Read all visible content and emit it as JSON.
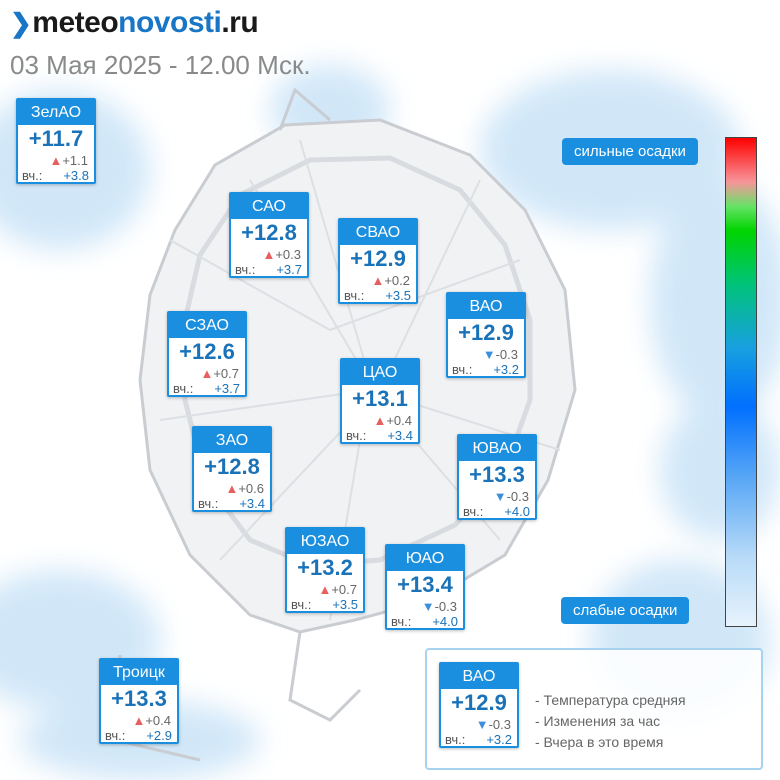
{
  "header": {
    "logo": {
      "prefix": "meteo",
      "accent": "novosti",
      "suffix": ".ru",
      "mark": "❯"
    },
    "datetime": "03 Мая 2025 - 12.00 Мск."
  },
  "districts": [
    {
      "name": "ЗелАО",
      "temp": "+11.7",
      "trend": "up",
      "change": "+1.1",
      "yesterday_label": "вч.:",
      "yesterday": "+3.8"
    },
    {
      "name": "САО",
      "temp": "+12.8",
      "trend": "up",
      "change": "+0.3",
      "yesterday_label": "вч.:",
      "yesterday": "+3.7"
    },
    {
      "name": "СВАО",
      "temp": "+12.9",
      "trend": "up",
      "change": "+0.2",
      "yesterday_label": "вч.:",
      "yesterday": "+3.5"
    },
    {
      "name": "ВАО",
      "temp": "+12.9",
      "trend": "down",
      "change": "-0.3",
      "yesterday_label": "вч.:",
      "yesterday": "+3.2"
    },
    {
      "name": "СЗАО",
      "temp": "+12.6",
      "trend": "up",
      "change": "+0.7",
      "yesterday_label": "вч.:",
      "yesterday": "+3.7"
    },
    {
      "name": "ЦАО",
      "temp": "+13.1",
      "trend": "up",
      "change": "+0.4",
      "yesterday_label": "вч.:",
      "yesterday": "+3.4"
    },
    {
      "name": "ЗАО",
      "temp": "+12.8",
      "trend": "up",
      "change": "+0.6",
      "yesterday_label": "вч.:",
      "yesterday": "+3.4"
    },
    {
      "name": "ЮВАО",
      "temp": "+13.3",
      "trend": "down",
      "change": "-0.3",
      "yesterday_label": "вч.:",
      "yesterday": "+4.0"
    },
    {
      "name": "ЮЗАО",
      "temp": "+13.2",
      "trend": "up",
      "change": "+0.7",
      "yesterday_label": "вч.:",
      "yesterday": "+3.5"
    },
    {
      "name": "ЮАО",
      "temp": "+13.4",
      "trend": "down",
      "change": "-0.3",
      "yesterday_label": "вч.:",
      "yesterday": "+4.0"
    },
    {
      "name": "Троицк",
      "temp": "+13.3",
      "trend": "up",
      "change": "+0.4",
      "yesterday_label": "вч.:",
      "yesterday": "+2.9"
    }
  ],
  "scale": {
    "top_label": "сильные осадки",
    "bottom_label": "слабые осадки"
  },
  "legend": {
    "sample": {
      "name": "ВАО",
      "temp": "+12.9",
      "trend": "down",
      "change": "-0.3",
      "yesterday_label": "вч.:",
      "yesterday": "+3.2"
    },
    "items": [
      "- Температура средняя",
      "- Изменения за час",
      "- Вчера в это время"
    ]
  },
  "colors": {
    "accent": "#1a8fe0",
    "temperature": "#1a72b8",
    "trend_up": "#e75f5f",
    "trend_down": "#3d8fdc",
    "precip_light": "#cfe6f8"
  },
  "icons": {
    "trend_up": "triangle-up-icon",
    "trend_down": "triangle-down-icon"
  }
}
